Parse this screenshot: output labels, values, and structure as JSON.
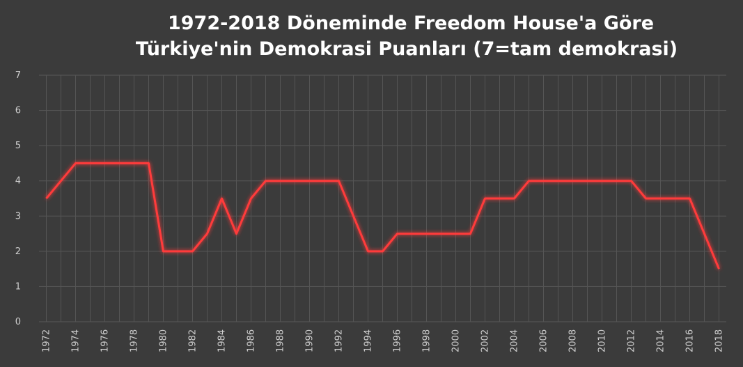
{
  "chart_data": {
    "type": "line",
    "title": [
      "1972-2018 Döneminde Freedom House'a Göre",
      "Türkiye'nin Demokrasi Puanları (7=tam demokrasi)"
    ],
    "categories": [
      "1972",
      null,
      "1974",
      null,
      "1976",
      null,
      "1978",
      null,
      "1980",
      null,
      "1982",
      null,
      "1984",
      null,
      "1986",
      null,
      "1988",
      null,
      "1990",
      null,
      "1992",
      null,
      "1994",
      null,
      "1996",
      null,
      "1998",
      null,
      "2000",
      null,
      "2002",
      null,
      "2004",
      null,
      "2006",
      null,
      "2008",
      null,
      "2010",
      null,
      "2012",
      null,
      "2014",
      null,
      "2016",
      null,
      "2018"
    ],
    "series": [
      {
        "color": "#ff3b3b",
        "values": [
          3.5,
          4,
          4.5,
          4.5,
          4.5,
          4.5,
          4.5,
          4.5,
          2,
          2,
          2,
          2.5,
          3.5,
          2.5,
          3.5,
          4,
          4,
          4,
          4,
          4,
          4,
          3,
          2,
          2,
          2.5,
          2.5,
          2.5,
          2.5,
          2.5,
          2.5,
          3.5,
          3.5,
          3.5,
          4,
          4,
          4,
          4,
          4,
          4,
          4,
          4,
          3.5,
          3.5,
          3.5,
          3.5,
          2.5,
          1.5
        ]
      }
    ],
    "ylim": [
      0,
      7
    ],
    "yticks": [
      0,
      1,
      2,
      3,
      4,
      5,
      6,
      7
    ],
    "grid": true
  }
}
